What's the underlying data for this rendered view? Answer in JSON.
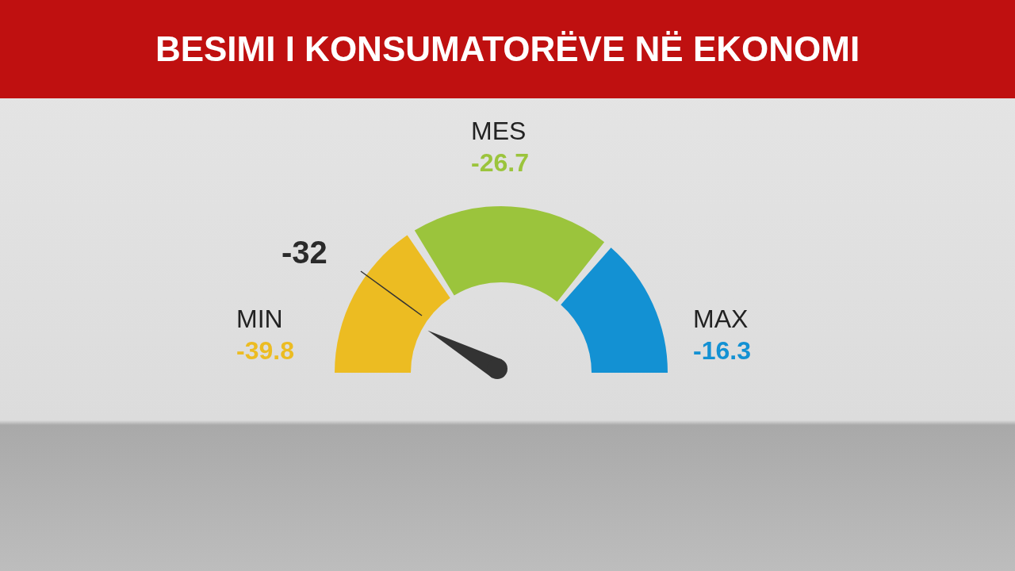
{
  "chart_data": {
    "type": "donut",
    "title": "BESIMI I KONSUMATORËVE NË EKONOMI",
    "categories": [
      "MIN",
      "MES",
      "MAX"
    ],
    "values": [
      32,
      40,
      28
    ],
    "colors": [
      "#ecbc22",
      "#9bc43c",
      "#1391d3"
    ],
    "needle": "MIN",
    "annotations": [
      "-39.8",
      "-26.7",
      "-16.3",
      "-32"
    ]
  }
}
